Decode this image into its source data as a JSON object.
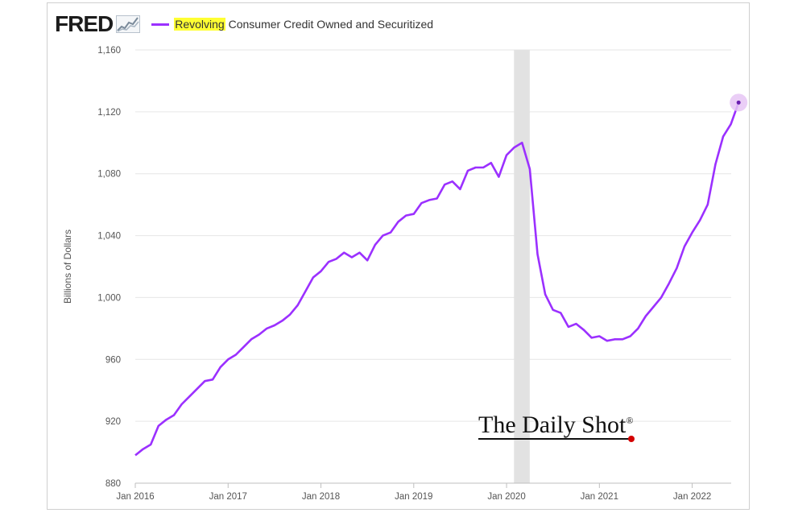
{
  "header": {
    "logo_text": "FRED",
    "legend_highlight": "Revolving",
    "legend_rest": " Consumer Credit Owned and Securitized"
  },
  "watermark": {
    "text": "The Daily Shot",
    "mark": "®"
  },
  "colors": {
    "line": "#9b30ff",
    "recession": "#e2e2e2",
    "grid": "#e6e6e6",
    "highlight": "#ffff33",
    "endpoint_halo": "#e6c6f5"
  },
  "chart_data": {
    "type": "line",
    "title": "Revolving Consumer Credit Owned and Securitized",
    "xlabel": "",
    "ylabel": "Billions of Dollars",
    "ylim": [
      880,
      1160
    ],
    "yticks": [
      880,
      920,
      960,
      1000,
      1040,
      1080,
      1120,
      1160
    ],
    "ytick_labels": [
      "880",
      "920",
      "960",
      "1,000",
      "1,040",
      "1,080",
      "1,120",
      "1,160"
    ],
    "xlim": [
      2016.0,
      2022.42
    ],
    "xticks": [
      2016,
      2017,
      2018,
      2019,
      2020,
      2021,
      2022
    ],
    "xtick_labels": [
      "Jan 2016",
      "Jan 2017",
      "Jan 2018",
      "Jan 2019",
      "Jan 2020",
      "Jan 2021",
      "Jan 2022"
    ],
    "grid": "horizontal",
    "recession_band": [
      2020.08,
      2020.25
    ],
    "series": [
      {
        "name": "Revolving Consumer Credit Owned and Securitized",
        "start": 2016.0,
        "step": 0.08333,
        "values": [
          898,
          902,
          905,
          917,
          921,
          924,
          931,
          936,
          941,
          946,
          947,
          955,
          960,
          963,
          968,
          973,
          976,
          980,
          982,
          985,
          989,
          995,
          1004,
          1013,
          1017,
          1023,
          1025,
          1029,
          1026,
          1029,
          1024,
          1034,
          1040,
          1042,
          1049,
          1053,
          1054,
          1061,
          1063,
          1064,
          1073,
          1075,
          1070,
          1082,
          1084,
          1084,
          1087,
          1078,
          1092,
          1097,
          1100,
          1083,
          1028,
          1002,
          992,
          990,
          981,
          983,
          979,
          974,
          975,
          972,
          973,
          973,
          975,
          980,
          988,
          994,
          1000,
          1009,
          1019,
          1033,
          1042,
          1050,
          1060,
          1086,
          1104,
          1112,
          1126
        ]
      }
    ]
  }
}
